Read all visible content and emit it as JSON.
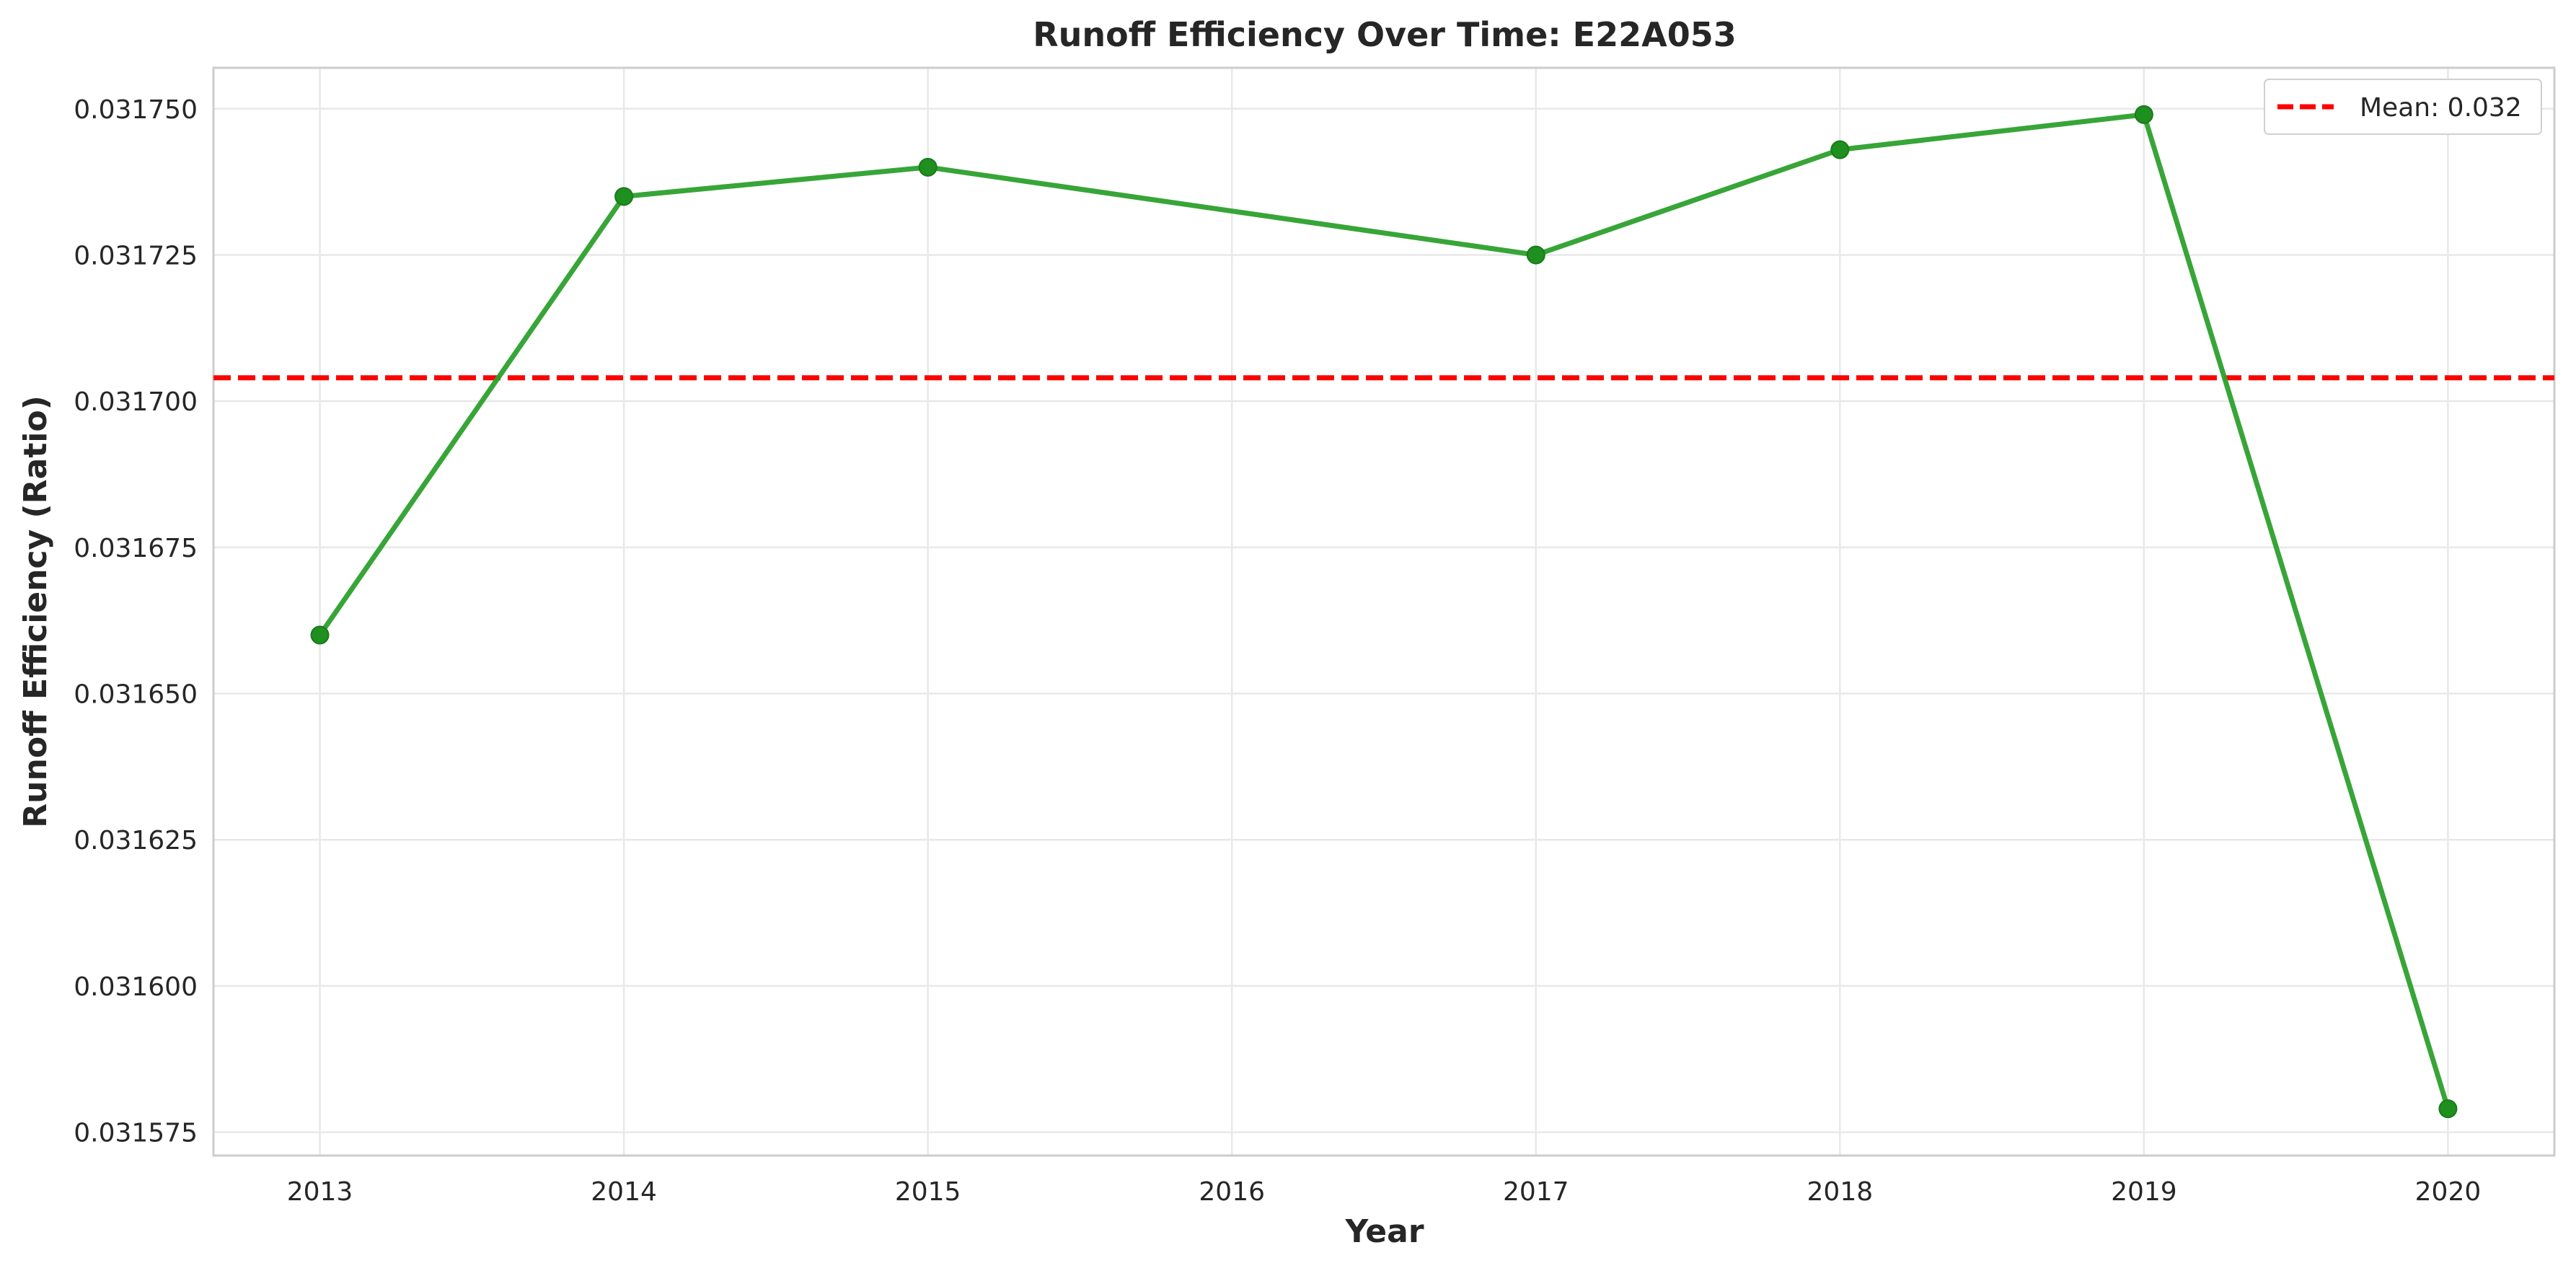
{
  "chart_data": {
    "type": "line",
    "title": "Runoff Efficiency Over Time: E22A053",
    "xlabel": "Year",
    "ylabel": "Runoff Efficiency (Ratio)",
    "x": [
      2013,
      2014,
      2015,
      2017,
      2018,
      2019,
      2020
    ],
    "series": [
      {
        "values": [
          0.03166,
          0.031735,
          0.03174,
          0.031725,
          0.031743,
          0.031749,
          0.031579
        ],
        "color": "#2ca02c",
        "marker": "circle"
      }
    ],
    "mean_line": {
      "label": "Mean: 0.032",
      "value": 0.031704,
      "color": "#ff0000",
      "style": "dashed"
    },
    "xlim": [
      2012.65,
      2020.35
    ],
    "ylim": [
      0.031571,
      0.031757
    ],
    "x_ticks": [
      2013,
      2014,
      2015,
      2016,
      2017,
      2018,
      2019,
      2020
    ],
    "x_tick_labels": [
      "2013",
      "2014",
      "2015",
      "2016",
      "2017",
      "2018",
      "2019",
      "2020"
    ],
    "y_ticks": [
      0.031575,
      0.0316,
      0.031625,
      0.03165,
      0.031675,
      0.0317,
      0.031725,
      0.03175
    ],
    "y_tick_labels": [
      "0.031575",
      "0.031600",
      "0.031625",
      "0.031650",
      "0.031675",
      "0.031700",
      "0.031725",
      "0.031750"
    ],
    "grid": true,
    "legend_position": "top-right"
  }
}
